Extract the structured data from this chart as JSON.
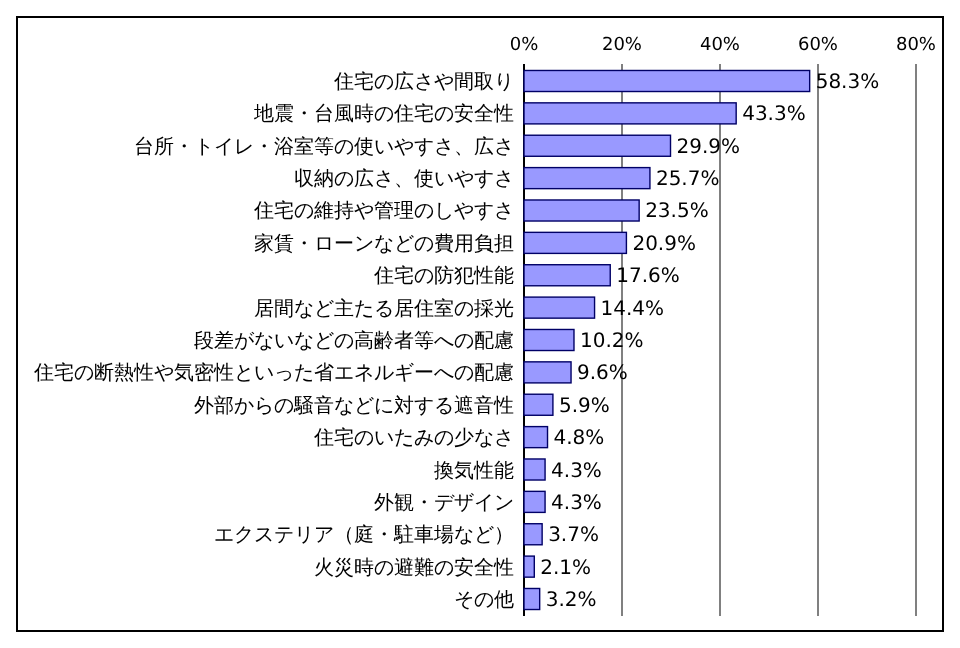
{
  "chart_data": {
    "type": "bar",
    "orientation": "horizontal",
    "categories": [
      "住宅の広さや間取り",
      "地震・台風時の住宅の安全性",
      "台所・トイレ・浴室等の使いやすさ、広さ",
      "収納の広さ、使いやすさ",
      "住宅の維持や管理のしやすさ",
      "家賃・ローンなどの費用負担",
      "住宅の防犯性能",
      "居間など主たる居住室の採光",
      "段差がないなどの高齢者等への配慮",
      "住宅の断熱性や気密性といった省エネルギーへの配慮",
      "外部からの騒音などに対する遮音性",
      "住宅のいたみの少なさ",
      "換気性能",
      "外観・デザイン",
      "エクステリア（庭・駐車場など）",
      "火災時の避難の安全性",
      "その他"
    ],
    "values": [
      58.3,
      43.3,
      29.9,
      25.7,
      23.5,
      20.9,
      17.6,
      14.4,
      10.2,
      9.6,
      5.9,
      4.8,
      4.3,
      4.3,
      3.7,
      2.1,
      3.2
    ],
    "value_labels": [
      "58.3%",
      "43.3%",
      "29.9%",
      "25.7%",
      "23.5%",
      "20.9%",
      "17.6%",
      "14.4%",
      "10.2%",
      "9.6%",
      "5.9%",
      "4.8%",
      "4.3%",
      "4.3%",
      "3.7%",
      "2.1%",
      "3.2%"
    ],
    "color": "#9999ff",
    "xlim": [
      0,
      80
    ],
    "xticks": [
      {
        "value": 0,
        "label": "0%"
      },
      {
        "value": 20,
        "label": "20%"
      },
      {
        "value": 40,
        "label": "40%"
      },
      {
        "value": 60,
        "label": "60%"
      },
      {
        "value": 80,
        "label": "80%"
      }
    ],
    "grid": "x"
  }
}
